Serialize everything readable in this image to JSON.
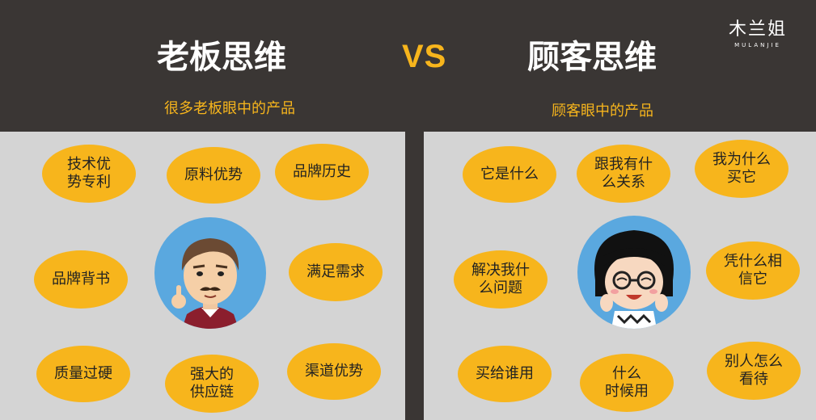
{
  "header": {
    "left_title": "老板思维",
    "vs": "VS",
    "right_title": "顾客思维",
    "left_subtitle": "很多老板眼中的产品",
    "right_subtitle": "顾客眼中的产品"
  },
  "logo": {
    "cn": "木兰姐",
    "en": "MULANJIE"
  },
  "left_panel": {
    "items": [
      "技术优\n势专利",
      "原料优势",
      "品牌历史",
      "品牌背书",
      "满足需求",
      "质量过硬",
      "强大的\n供应链",
      "渠道优势"
    ],
    "avatar": "boss-avatar"
  },
  "right_panel": {
    "items": [
      "它是什么",
      "跟我有什\n么关系",
      "我为什么\n买它",
      "解决我什\n么问题",
      "凭什么相\n信它",
      "买给谁用",
      "什么\n时候用",
      "别人怎么\n看待"
    ],
    "avatar": "customer-avatar"
  },
  "colors": {
    "header_bg": "#3a3634",
    "panel_bg": "#d4d4d4",
    "accent": "#f7b51c",
    "avatar_bg": "#5aa8df"
  }
}
